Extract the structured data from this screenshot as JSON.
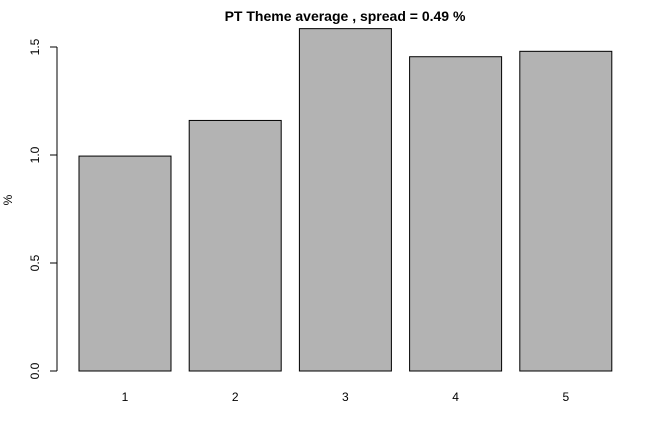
{
  "chart_data": {
    "type": "bar",
    "title": "PT Theme average , spread = 0.49 %",
    "xlabel": "",
    "ylabel": "%",
    "categories": [
      "1",
      "2",
      "3",
      "4",
      "5"
    ],
    "values": [
      0.995,
      1.16,
      1.585,
      1.455,
      1.48
    ],
    "ylim": [
      0,
      1.5
    ],
    "yticks": [
      0.0,
      0.5,
      1.0,
      1.5
    ],
    "ytick_labels": [
      "0.0",
      "0.5",
      "1.0",
      "1.5"
    ],
    "bar_color": "#b3b3b3",
    "edge_color": "#000000",
    "grid": false,
    "legend": "none"
  }
}
